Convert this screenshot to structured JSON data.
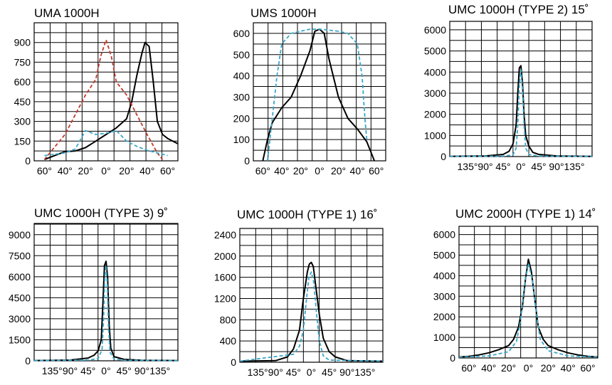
{
  "chart_data": [
    {
      "type": "line",
      "title": "UMA 1000H",
      "ylim": [
        0,
        1050
      ],
      "yticks": [
        0,
        150,
        300,
        450,
        600,
        750,
        900
      ],
      "xlim": [
        -70,
        70
      ],
      "xticks": [
        -60,
        -40,
        -20,
        0,
        20,
        40,
        60
      ],
      "xticklabels": [
        "60°",
        "40°",
        "20°",
        "0°",
        "20°",
        "40°",
        "60°"
      ],
      "grid": true,
      "series": [
        {
          "style": "solid",
          "color": "#000000",
          "x": [
            -60,
            -50,
            -40,
            -30,
            -20,
            -10,
            0,
            10,
            20,
            25,
            30,
            35,
            38,
            42,
            46,
            50,
            55,
            60,
            70
          ],
          "y": [
            10,
            40,
            70,
            75,
            100,
            150,
            200,
            250,
            320,
            450,
            650,
            820,
            900,
            870,
            600,
            300,
            200,
            170,
            130
          ]
        },
        {
          "style": "dashed",
          "color": "#c0392b",
          "x": [
            -60,
            -40,
            -20,
            -10,
            -5,
            0,
            5,
            10,
            20,
            30,
            40,
            50,
            55
          ],
          "y": [
            10,
            200,
            500,
            620,
            800,
            920,
            800,
            600,
            500,
            350,
            200,
            60,
            10
          ]
        },
        {
          "style": "dashed",
          "color": "#3aa7c9",
          "x": [
            -60,
            -40,
            -30,
            -20,
            -10,
            0,
            10,
            20,
            30,
            40,
            50,
            60
          ],
          "y": [
            40,
            60,
            90,
            230,
            200,
            210,
            230,
            150,
            110,
            80,
            60,
            40
          ]
        }
      ]
    },
    {
      "type": "line",
      "title": "UMS 1000H",
      "ylim": [
        0,
        650
      ],
      "yticks": [
        0,
        100,
        200,
        300,
        400,
        500,
        600
      ],
      "xlim": [
        -70,
        70
      ],
      "xticks": [
        -60,
        -40,
        -20,
        0,
        20,
        40,
        60
      ],
      "xticklabels": [
        "60°",
        "40°",
        "20°",
        "0°",
        "20°",
        "40°",
        "60°"
      ],
      "grid": true,
      "series": [
        {
          "style": "solid",
          "color": "#000000",
          "x": [
            -60,
            -55,
            -50,
            -40,
            -30,
            -20,
            -10,
            -5,
            0,
            5,
            10,
            20,
            30,
            40,
            50,
            58
          ],
          "y": [
            0,
            100,
            180,
            250,
            300,
            400,
            520,
            610,
            620,
            600,
            480,
            300,
            200,
            150,
            90,
            0
          ]
        },
        {
          "style": "dashed",
          "color": "#3aa7c9",
          "x": [
            -55,
            -50,
            -45,
            -40,
            -30,
            -20,
            -10,
            0,
            10,
            20,
            30,
            40,
            45,
            48,
            50
          ],
          "y": [
            0,
            200,
            400,
            550,
            600,
            610,
            620,
            620,
            615,
            610,
            600,
            550,
            400,
            200,
            100
          ]
        }
      ]
    },
    {
      "type": "line",
      "title": "UMC 1000H (TYPE 2) 15˚",
      "ylim": [
        0,
        6400
      ],
      "yticks": [
        0,
        1000,
        2000,
        3000,
        4000,
        5000,
        6000
      ],
      "xlim": [
        -180,
        180
      ],
      "xticks": [
        -135,
        -90,
        -45,
        0,
        45,
        90,
        135
      ],
      "xticklabels": [
        "135°",
        "90°",
        "45°",
        "0°",
        "45°",
        "90°",
        "135°"
      ],
      "grid": true,
      "series": [
        {
          "style": "solid",
          "color": "#000000",
          "x": [
            -180,
            -90,
            -45,
            -30,
            -20,
            -12,
            -8,
            -4,
            0,
            4,
            8,
            12,
            20,
            30,
            45,
            90,
            180
          ],
          "y": [
            10,
            30,
            100,
            250,
            600,
            1500,
            3000,
            4200,
            4300,
            3500,
            2000,
            1000,
            500,
            200,
            100,
            30,
            10
          ]
        },
        {
          "style": "dashed",
          "color": "#3aa7c9",
          "x": [
            -180,
            -45,
            -20,
            -12,
            -8,
            -4,
            0,
            4,
            8,
            12,
            20,
            45,
            180
          ],
          "y": [
            10,
            20,
            80,
            400,
            1500,
            3400,
            4100,
            3200,
            1500,
            400,
            100,
            20,
            10
          ]
        }
      ]
    },
    {
      "type": "line",
      "title": "UMC 1000H (TYPE 3) 9˚",
      "ylim": [
        0,
        9800
      ],
      "yticks": [
        0,
        1500,
        3000,
        4500,
        6000,
        7500,
        9000
      ],
      "xlim": [
        -180,
        180
      ],
      "xticks": [
        -135,
        -90,
        -45,
        0,
        45,
        90,
        135
      ],
      "xticklabels": [
        "135°",
        "90°",
        "45°",
        "0°",
        "45°",
        "90°",
        "135°"
      ],
      "grid": true,
      "series": [
        {
          "style": "solid",
          "color": "#000000",
          "x": [
            -180,
            -90,
            -45,
            -30,
            -20,
            -12,
            -8,
            -4,
            0,
            4,
            8,
            12,
            20,
            45,
            90,
            180
          ],
          "y": [
            20,
            50,
            200,
            400,
            700,
            1500,
            4000,
            6800,
            7100,
            6000,
            2500,
            900,
            300,
            100,
            40,
            20
          ]
        },
        {
          "style": "dashed",
          "color": "#3aa7c9",
          "x": [
            -180,
            -45,
            -20,
            -10,
            -6,
            -3,
            0,
            3,
            6,
            10,
            20,
            45,
            180
          ],
          "y": [
            20,
            50,
            150,
            800,
            3000,
            6000,
            6800,
            5500,
            2500,
            600,
            120,
            40,
            20
          ]
        }
      ]
    },
    {
      "type": "line",
      "title": "UMC 1000H (TYPE 1) 16˚",
      "ylim": [
        0,
        2520
      ],
      "yticks": [
        0,
        400,
        800,
        1200,
        1600,
        2000,
        2400
      ],
      "xlim": [
        -180,
        180
      ],
      "xticks": [
        -135,
        -90,
        -45,
        0,
        45,
        90,
        135
      ],
      "xticklabels": [
        "135°",
        "90°",
        "45°",
        "0°",
        "45°",
        "90°",
        "135°"
      ],
      "grid": true,
      "series": [
        {
          "style": "solid",
          "color": "#000000",
          "x": [
            -180,
            -90,
            -60,
            -45,
            -30,
            -20,
            -10,
            -5,
            0,
            5,
            10,
            20,
            30,
            45,
            60,
            90,
            180
          ],
          "y": [
            20,
            30,
            100,
            250,
            600,
            1200,
            1700,
            1850,
            1880,
            1800,
            1500,
            900,
            450,
            200,
            100,
            30,
            20
          ]
        },
        {
          "style": "dashed",
          "color": "#3aa7c9",
          "x": [
            -180,
            -45,
            -30,
            -20,
            -12,
            -6,
            0,
            6,
            12,
            20,
            30,
            45,
            180
          ],
          "y": [
            20,
            150,
            300,
            600,
            1200,
            1600,
            1700,
            1500,
            1000,
            400,
            120,
            40,
            20
          ]
        }
      ]
    },
    {
      "type": "line",
      "title": "UMC 2000H (TYPE 1) 14˚",
      "ylim": [
        0,
        6400
      ],
      "yticks": [
        0,
        1000,
        2000,
        3000,
        4000,
        5000,
        6000
      ],
      "xlim": [
        -70,
        70
      ],
      "xticks": [
        -60,
        -40,
        -20,
        0,
        20,
        40,
        60
      ],
      "xticklabels": [
        "60°",
        "40°",
        "20°",
        "0°",
        "20°",
        "40°",
        "60°"
      ],
      "grid": true,
      "series": [
        {
          "style": "solid",
          "color": "#000000",
          "x": [
            -70,
            -60,
            -50,
            -40,
            -30,
            -20,
            -15,
            -10,
            -6,
            -3,
            0,
            3,
            6,
            10,
            15,
            20,
            30,
            40,
            50,
            60,
            70
          ],
          "y": [
            50,
            80,
            150,
            250,
            400,
            600,
            900,
            1500,
            2500,
            3800,
            4800,
            4200,
            3000,
            1500,
            900,
            600,
            400,
            250,
            150,
            80,
            50
          ]
        },
        {
          "style": "dashed",
          "color": "#3aa7c9",
          "x": [
            -70,
            -40,
            -20,
            -12,
            -8,
            -4,
            0,
            4,
            8,
            12,
            20,
            40,
            70
          ],
          "y": [
            40,
            100,
            300,
            800,
            1800,
            3500,
            4600,
            3800,
            2200,
            900,
            350,
            100,
            40
          ]
        }
      ]
    }
  ]
}
